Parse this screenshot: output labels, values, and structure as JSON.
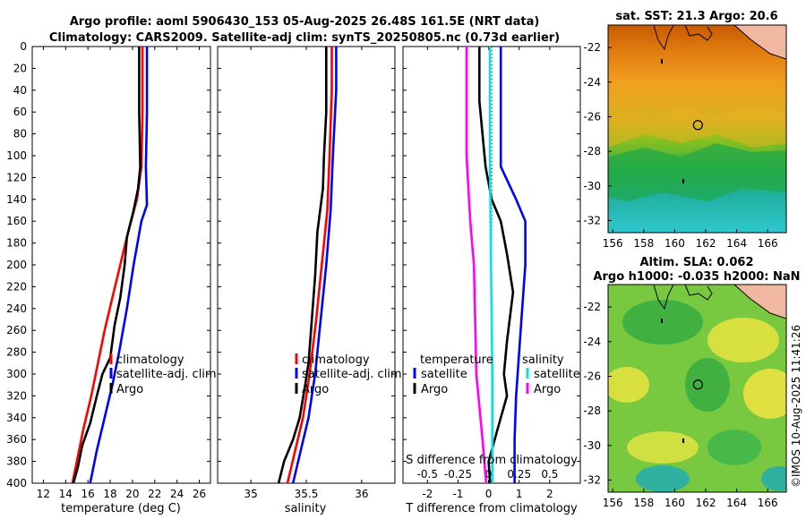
{
  "header": {
    "title_line1": "Argo profile: aoml 5906430_153 05-Aug-2025 26.48S 161.5E (NRT data)",
    "title_line2": "Climatology: CARS2009. Satellite-adj clim: synTS_20250805.nc (0.73d earlier)"
  },
  "colors": {
    "climatology": "#ff0000",
    "satellite": "#0000ff",
    "argo": "#000000",
    "cyan": "#00e6e6",
    "magenta": "#ff00ff",
    "coast": "#000000",
    "land": "#f0b8a0"
  },
  "chart_data": [
    {
      "type": "line",
      "title": "",
      "xlabel": "temperature (deg C)",
      "ylabel": "",
      "xlim": [
        11,
        27
      ],
      "ylim": [
        0,
        400
      ],
      "xticks": [
        "12",
        "14",
        "16",
        "18",
        "20",
        "22",
        "24",
        "26"
      ],
      "yticks": [
        "0",
        "20",
        "40",
        "60",
        "80",
        "100",
        "120",
        "140",
        "160",
        "180",
        "200",
        "220",
        "240",
        "260",
        "280",
        "300",
        "320",
        "340",
        "360",
        "380",
        "400"
      ],
      "legend": [
        "climatology",
        "satellite-adj. clim",
        "Argo"
      ],
      "series": [
        {
          "name": "climatology",
          "color": "#ff0000",
          "points": [
            [
              20.9,
              0
            ],
            [
              20.9,
              60
            ],
            [
              20.8,
              110
            ],
            [
              20.4,
              140
            ],
            [
              19.6,
              170
            ],
            [
              18.9,
              200
            ],
            [
              18.2,
              230
            ],
            [
              17.5,
              260
            ],
            [
              16.9,
              290
            ],
            [
              16.3,
              320
            ],
            [
              15.6,
              350
            ],
            [
              15.0,
              380
            ],
            [
              14.6,
              400
            ]
          ]
        },
        {
          "name": "satellite-adj. clim",
          "color": "#0000ff",
          "points": [
            [
              21.3,
              0
            ],
            [
              21.3,
              60
            ],
            [
              21.2,
              110
            ],
            [
              21.3,
              145
            ],
            [
              20.8,
              160
            ],
            [
              20.1,
              200
            ],
            [
              19.5,
              240
            ],
            [
              18.8,
              280
            ],
            [
              18.2,
              310
            ],
            [
              17.5,
              340
            ],
            [
              16.8,
              370
            ],
            [
              16.2,
              400
            ]
          ]
        },
        {
          "name": "Argo",
          "color": "#000000",
          "points": [
            [
              20.6,
              0
            ],
            [
              20.6,
              60
            ],
            [
              20.7,
              110
            ],
            [
              20.5,
              130
            ],
            [
              20.1,
              150
            ],
            [
              19.5,
              175
            ],
            [
              19.3,
              200
            ],
            [
              18.9,
              230
            ],
            [
              18.4,
              255
            ],
            [
              18.0,
              285
            ],
            [
              17.3,
              300
            ],
            [
              16.8,
              320
            ],
            [
              16.2,
              345
            ],
            [
              15.5,
              365
            ],
            [
              15.1,
              385
            ],
            [
              14.7,
              400
            ]
          ]
        }
      ]
    },
    {
      "type": "line",
      "title": "",
      "xlabel": "salinity",
      "ylabel": "",
      "xlim": [
        34.7,
        36.3
      ],
      "ylim": [
        0,
        400
      ],
      "xticks": [
        "35",
        "35.5",
        "36"
      ],
      "legend": [
        "climatology",
        "satellite-adj. clim",
        "Argo"
      ],
      "series": [
        {
          "name": "climatology",
          "color": "#ff0000",
          "points": [
            [
              35.73,
              0
            ],
            [
              35.73,
              40
            ],
            [
              35.71,
              100
            ],
            [
              35.69,
              150
            ],
            [
              35.64,
              200
            ],
            [
              35.59,
              250
            ],
            [
              35.53,
              300
            ],
            [
              35.47,
              340
            ],
            [
              35.4,
              370
            ],
            [
              35.33,
              400
            ]
          ]
        },
        {
          "name": "satellite-adj. clim",
          "color": "#0000ff",
          "points": [
            [
              35.77,
              0
            ],
            [
              35.77,
              40
            ],
            [
              35.74,
              100
            ],
            [
              35.72,
              150
            ],
            [
              35.68,
              200
            ],
            [
              35.63,
              250
            ],
            [
              35.58,
              300
            ],
            [
              35.52,
              340
            ],
            [
              35.45,
              370
            ],
            [
              35.38,
              400
            ]
          ]
        },
        {
          "name": "Argo",
          "color": "#000000",
          "points": [
            [
              35.68,
              0
            ],
            [
              35.68,
              60
            ],
            [
              35.66,
              100
            ],
            [
              35.65,
              130
            ],
            [
              35.6,
              170
            ],
            [
              35.58,
              210
            ],
            [
              35.55,
              250
            ],
            [
              35.52,
              290
            ],
            [
              35.49,
              310
            ],
            [
              35.44,
              340
            ],
            [
              35.38,
              360
            ],
            [
              35.3,
              380
            ],
            [
              35.25,
              400
            ]
          ]
        }
      ]
    },
    {
      "type": "line",
      "title": "",
      "xlabel": "T difference from climatology",
      "xlabel_top": "S difference from climatology",
      "xlim": [
        -2.8,
        3
      ],
      "ylim": [
        0,
        400
      ],
      "xticks": [
        "-2",
        "-1",
        "0",
        "1",
        "2"
      ],
      "xticks_top": [
        "-0.5",
        "-0.25",
        "0",
        "0.25",
        "0.5"
      ],
      "legend_temperature": {
        "title": "temperature",
        "items": [
          "satellite",
          "Argo"
        ]
      },
      "legend_salinity": {
        "title": "salinity",
        "items": [
          "satellite",
          "Argo"
        ]
      },
      "series": [
        {
          "name": "temperature satellite",
          "color": "#0000ff",
          "points": [
            [
              0.4,
              0
            ],
            [
              0.4,
              60
            ],
            [
              0.4,
              110
            ],
            [
              0.9,
              140
            ],
            [
              1.2,
              160
            ],
            [
              1.2,
              200
            ],
            [
              1.1,
              240
            ],
            [
              1.0,
              280
            ],
            [
              0.9,
              320
            ],
            [
              0.85,
              360
            ],
            [
              0.85,
              400
            ]
          ]
        },
        {
          "name": "temperature Argo",
          "color": "#000000",
          "points": [
            [
              -0.3,
              0
            ],
            [
              -0.3,
              50
            ],
            [
              -0.1,
              110
            ],
            [
              0.1,
              140
            ],
            [
              0.4,
              160
            ],
            [
              0.6,
              190
            ],
            [
              0.8,
              225
            ],
            [
              0.6,
              270
            ],
            [
              0.5,
              300
            ],
            [
              0.6,
              320
            ],
            [
              0.4,
              340
            ],
            [
              0.2,
              360
            ],
            [
              0.0,
              380
            ],
            [
              0.05,
              400
            ]
          ]
        },
        {
          "name": "salinity satellite",
          "color": "#00e6e6",
          "points": [
            [
              0.01,
              0
            ],
            [
              0.01,
              100
            ],
            [
              0.02,
              200
            ],
            [
              0.03,
              300
            ],
            [
              0.03,
              400
            ]
          ]
        },
        {
          "name": "salinity Argo",
          "color": "#ff00ff",
          "points": [
            [
              -0.18,
              0
            ],
            [
              -0.18,
              100
            ],
            [
              -0.15,
              160
            ],
            [
              -0.12,
              200
            ],
            [
              -0.1,
              300
            ],
            [
              -0.05,
              360
            ],
            [
              -0.02,
              400
            ]
          ]
        }
      ]
    },
    {
      "type": "heatmap",
      "title": "sat. SST: 21.3 Argo: 20.6",
      "xlim": [
        155.7,
        167.2
      ],
      "ylim": [
        -32.7,
        -20.7
      ],
      "xticks": [
        "156",
        "158",
        "160",
        "162",
        "164",
        "166"
      ],
      "yticks": [
        "-22",
        "-24",
        "-26",
        "-28",
        "-30",
        "-32"
      ],
      "marker": {
        "lon": 161.5,
        "lat": -26.48
      }
    },
    {
      "type": "heatmap",
      "title_line1": "Altim. SLA: 0.062",
      "title_line2": "Argo h1000: -0.035 h2000: NaN",
      "xlim": [
        155.7,
        167.2
      ],
      "ylim": [
        -32.7,
        -20.7
      ],
      "xticks": [
        "156",
        "158",
        "160",
        "162",
        "164",
        "166"
      ],
      "yticks": [
        "-22",
        "-24",
        "-26",
        "-28",
        "-30",
        "-32"
      ],
      "marker": {
        "lon": 161.5,
        "lat": -26.48
      }
    }
  ],
  "footer": {
    "stamp": "©IMOS 10-Aug-2025 11:41:26"
  }
}
